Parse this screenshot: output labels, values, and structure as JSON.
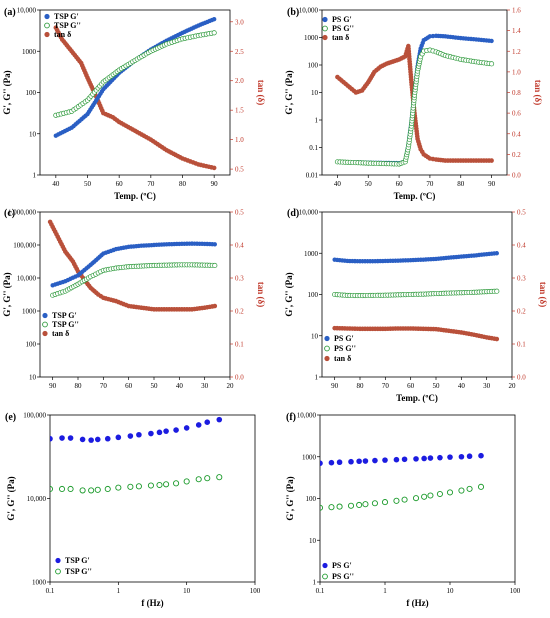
{
  "colors": {
    "blue": "#2a5fc4",
    "green": "#2e9a3c",
    "red": "#b9503a",
    "red_axis": "#c0392b",
    "scatter_blue": "#1c1ce0",
    "scatter_green": "#1a9a2a"
  },
  "chart_data": [
    {
      "panel": "(a)",
      "type": "line",
      "xlabel": "Temp. (ºC)",
      "ylabel": "G', G'' (Pa)",
      "y2label": "tan (δ)",
      "xlim": [
        35,
        95
      ],
      "xticks": [
        "40",
        "50",
        "60",
        "70",
        "80",
        "90"
      ],
      "ylog": true,
      "ylim": [
        1,
        10000
      ],
      "yticks": [
        "1",
        "10",
        "100",
        "1000",
        "10,000"
      ],
      "y2lim": [
        0.4,
        3.2
      ],
      "y2ticks": [
        "0.5",
        "1.0",
        "1.5",
        "2.0",
        "2.5",
        "3.0"
      ],
      "legend_position": "top-left",
      "series": [
        {
          "name": "TSP G'",
          "color": "blue",
          "marker": "filled",
          "axis": "left",
          "x": [
            40,
            45,
            50,
            55,
            60,
            65,
            70,
            75,
            80,
            85,
            90
          ],
          "y": [
            9,
            14,
            30,
            120,
            300,
            600,
            1100,
            1800,
            2800,
            4200,
            6000
          ]
        },
        {
          "name": "TSP G''",
          "color": "green",
          "marker": "open",
          "axis": "left",
          "x": [
            40,
            45,
            50,
            55,
            60,
            65,
            70,
            75,
            80,
            85,
            90
          ],
          "y": [
            28,
            35,
            65,
            180,
            350,
            600,
            1000,
            1500,
            2000,
            2400,
            2800
          ]
        },
        {
          "name": "tan δ",
          "color": "red",
          "marker": "filled",
          "axis": "right",
          "x": [
            40,
            42,
            45,
            48,
            50,
            53,
            55,
            58,
            60,
            65,
            70,
            75,
            80,
            85,
            90
          ],
          "y": [
            2.9,
            2.7,
            2.5,
            2.3,
            2.05,
            1.7,
            1.45,
            1.38,
            1.3,
            1.15,
            1.0,
            0.82,
            0.68,
            0.58,
            0.52
          ]
        }
      ]
    },
    {
      "panel": "(b)",
      "type": "line",
      "xlabel": "Temp. (ºC)",
      "ylabel": "G', G'' (Pa)",
      "y2label": "tan (δ)",
      "xlim": [
        35,
        95
      ],
      "xticks": [
        "40",
        "50",
        "60",
        "70",
        "80",
        "90"
      ],
      "ylog": true,
      "ylim": [
        0.01,
        10000
      ],
      "yticks": [
        "0.01",
        "0.1",
        "1",
        "10",
        "100",
        "1000",
        "10,000"
      ],
      "y2lim": [
        0,
        1.6
      ],
      "y2ticks": [
        "0.0",
        "0.2",
        "0.4",
        "0.6",
        "0.8",
        "1.0",
        "1.2",
        "1.4",
        "1.6"
      ],
      "legend_position": "top-left",
      "series": [
        {
          "name": "PS G'",
          "color": "blue",
          "marker": "filled",
          "axis": "left",
          "x": [
            40,
            50,
            60,
            62,
            63,
            64,
            65,
            66,
            67,
            68,
            70,
            72,
            75,
            80,
            85,
            90
          ],
          "y": [
            0.03,
            0.028,
            0.027,
            0.03,
            0.12,
            0.8,
            10,
            90,
            400,
            800,
            1100,
            1150,
            1100,
            950,
            850,
            750
          ]
        },
        {
          "name": "PS G''",
          "color": "green",
          "marker": "open",
          "axis": "left",
          "x": [
            40,
            50,
            60,
            62,
            63,
            64,
            65,
            66,
            67,
            68,
            70,
            72,
            75,
            80,
            85,
            90
          ],
          "y": [
            0.03,
            0.027,
            0.025,
            0.03,
            0.1,
            0.6,
            8,
            60,
            200,
            320,
            350,
            300,
            220,
            160,
            130,
            110
          ]
        },
        {
          "name": "tan δ",
          "color": "red",
          "marker": "filled",
          "axis": "right",
          "x": [
            40,
            42,
            44,
            46,
            48,
            50,
            52,
            54,
            56,
            58,
            60,
            62,
            63,
            64,
            65,
            66,
            67,
            68,
            70,
            72,
            75,
            80,
            85,
            90
          ],
          "y": [
            0.95,
            0.9,
            0.85,
            0.8,
            0.82,
            0.9,
            1.0,
            1.05,
            1.08,
            1.1,
            1.12,
            1.15,
            1.25,
            0.9,
            0.6,
            0.35,
            0.25,
            0.2,
            0.16,
            0.15,
            0.14,
            0.14,
            0.14,
            0.14
          ]
        }
      ]
    },
    {
      "panel": "(c)",
      "type": "line",
      "xlabel": "",
      "ylabel": "G', G'' (Pa)",
      "y2label": "tan (δ)",
      "xlim": [
        95,
        20
      ],
      "xticks": [
        "90",
        "80",
        "70",
        "60",
        "50",
        "40",
        "30",
        "20"
      ],
      "ylog": true,
      "ylim": [
        10,
        1000000
      ],
      "yticks": [
        "10",
        "100",
        "1000",
        "10,000",
        "100,000",
        "1,000,000"
      ],
      "y2lim": [
        0,
        0.5
      ],
      "y2ticks": [
        "0.0",
        "0.1",
        "0.2",
        "0.3",
        "0.4",
        "0.5"
      ],
      "legend_position": "bottom-left",
      "series": [
        {
          "name": "TSP G'",
          "color": "blue",
          "marker": "filled",
          "axis": "left",
          "x": [
            90,
            85,
            80,
            75,
            70,
            65,
            60,
            55,
            50,
            45,
            40,
            35,
            30,
            26
          ],
          "y": [
            6000,
            8000,
            12000,
            25000,
            55000,
            75000,
            88000,
            95000,
            100000,
            105000,
            108000,
            110000,
            108000,
            105000
          ]
        },
        {
          "name": "TSP G''",
          "color": "green",
          "marker": "open",
          "axis": "left",
          "x": [
            90,
            85,
            80,
            75,
            70,
            65,
            60,
            55,
            50,
            45,
            40,
            35,
            30,
            26
          ],
          "y": [
            3000,
            4000,
            6500,
            11000,
            17000,
            20000,
            22000,
            23000,
            24000,
            24500,
            25000,
            25000,
            24500,
            24000
          ]
        },
        {
          "name": "tan δ",
          "color": "red",
          "marker": "filled",
          "axis": "right",
          "x": [
            91,
            89,
            87,
            85,
            82,
            80,
            78,
            75,
            72,
            70,
            65,
            60,
            55,
            50,
            45,
            40,
            35,
            30,
            26
          ],
          "y": [
            0.47,
            0.44,
            0.41,
            0.38,
            0.35,
            0.32,
            0.3,
            0.27,
            0.25,
            0.24,
            0.23,
            0.215,
            0.21,
            0.205,
            0.205,
            0.205,
            0.205,
            0.21,
            0.215
          ]
        }
      ]
    },
    {
      "panel": "(d)",
      "type": "line",
      "xlabel": "Temp. (ºC)",
      "ylabel": "G', G'' (Pa)",
      "y2label": "tan (δ)",
      "xlim": [
        95,
        20
      ],
      "xticks": [
        "90",
        "80",
        "70",
        "60",
        "50",
        "40",
        "30",
        "20"
      ],
      "ylog": true,
      "ylim": [
        1,
        10000
      ],
      "yticks": [
        "1",
        "10",
        "100",
        "1000",
        "10,000"
      ],
      "y2lim": [
        0,
        0.5
      ],
      "y2ticks": [
        "0.0",
        "0.1",
        "0.2",
        "0.3",
        "0.4",
        "0.5"
      ],
      "legend_position": "bottom-left",
      "series": [
        {
          "name": "PS G'",
          "color": "blue",
          "marker": "filled",
          "axis": "left",
          "x": [
            90,
            85,
            80,
            75,
            70,
            65,
            60,
            55,
            50,
            45,
            40,
            35,
            30,
            26
          ],
          "y": [
            700,
            650,
            640,
            640,
            650,
            660,
            680,
            700,
            730,
            780,
            830,
            880,
            950,
            1000
          ]
        },
        {
          "name": "PS G''",
          "color": "green",
          "marker": "open",
          "axis": "left",
          "x": [
            90,
            85,
            80,
            75,
            70,
            65,
            60,
            55,
            50,
            45,
            40,
            35,
            30,
            26
          ],
          "y": [
            100,
            95,
            94,
            95,
            96,
            98,
            100,
            102,
            105,
            108,
            110,
            113,
            117,
            120
          ]
        },
        {
          "name": "tan δ",
          "color": "red",
          "marker": "filled",
          "axis": "right",
          "x": [
            90,
            85,
            80,
            75,
            70,
            65,
            60,
            55,
            50,
            45,
            40,
            35,
            30,
            26
          ],
          "y": [
            0.148,
            0.147,
            0.146,
            0.146,
            0.146,
            0.147,
            0.147,
            0.146,
            0.145,
            0.14,
            0.135,
            0.128,
            0.12,
            0.115
          ]
        }
      ]
    },
    {
      "panel": "(e)",
      "type": "scatter",
      "xlabel": "f (Hz)",
      "ylabel": "G', G'' (Pa)",
      "xlog": true,
      "xlim": [
        0.1,
        100
      ],
      "xticks": [
        "0.1",
        "1",
        "10",
        "100"
      ],
      "ylog": true,
      "ylim": [
        1000,
        100000
      ],
      "yticks": [
        "1000",
        "10,000",
        "100,000"
      ],
      "legend_position": "bottom-left",
      "series": [
        {
          "name": "TSP G'",
          "color": "scatter_blue",
          "marker": "filled",
          "x": [
            0.1,
            0.15,
            0.2,
            0.3,
            0.4,
            0.5,
            0.7,
            1,
            1.5,
            2,
            3,
            4,
            5,
            7,
            10,
            15,
            20,
            30
          ],
          "y": [
            52000,
            53000,
            53000,
            51000,
            50000,
            51000,
            52000,
            54000,
            56000,
            58000,
            60000,
            62000,
            64000,
            66000,
            70000,
            76000,
            82000,
            88000
          ]
        },
        {
          "name": "TSP G''",
          "color": "scatter_green",
          "marker": "open",
          "x": [
            0.1,
            0.15,
            0.2,
            0.3,
            0.4,
            0.5,
            0.7,
            1,
            1.5,
            2,
            3,
            4,
            5,
            7,
            10,
            15,
            20,
            30
          ],
          "y": [
            13000,
            13000,
            13000,
            12500,
            12500,
            12700,
            13000,
            13500,
            13800,
            14000,
            14300,
            14500,
            14800,
            15200,
            16000,
            17000,
            17500,
            18000
          ]
        }
      ]
    },
    {
      "panel": "(f)",
      "type": "scatter",
      "xlabel": "f (Hz)",
      "ylabel": "G', G'' (Pa)",
      "xlog": true,
      "xlim": [
        0.1,
        100
      ],
      "xticks": [
        "0.1",
        "1",
        "10",
        "100"
      ],
      "ylog": true,
      "ylim": [
        1,
        10000
      ],
      "yticks": [
        "1",
        "10",
        "100",
        "1000",
        "10,000"
      ],
      "legend_position": "bottom-left",
      "series": [
        {
          "name": "PS G'",
          "color": "scatter_blue",
          "marker": "filled",
          "x": [
            0.1,
            0.15,
            0.2,
            0.3,
            0.4,
            0.5,
            0.7,
            1,
            1.5,
            2,
            3,
            4,
            5,
            7,
            10,
            15,
            20,
            30
          ],
          "y": [
            700,
            720,
            740,
            760,
            780,
            790,
            810,
            830,
            850,
            870,
            890,
            910,
            930,
            950,
            980,
            1000,
            1030,
            1060
          ]
        },
        {
          "name": "PS G''",
          "color": "scatter_green",
          "marker": "open",
          "x": [
            0.1,
            0.15,
            0.2,
            0.3,
            0.4,
            0.5,
            0.7,
            1,
            1.5,
            2,
            3,
            4,
            5,
            7,
            10,
            15,
            20,
            30
          ],
          "y": [
            60,
            62,
            64,
            67,
            70,
            73,
            77,
            82,
            88,
            94,
            102,
            110,
            118,
            128,
            140,
            155,
            170,
            190
          ]
        }
      ]
    }
  ]
}
